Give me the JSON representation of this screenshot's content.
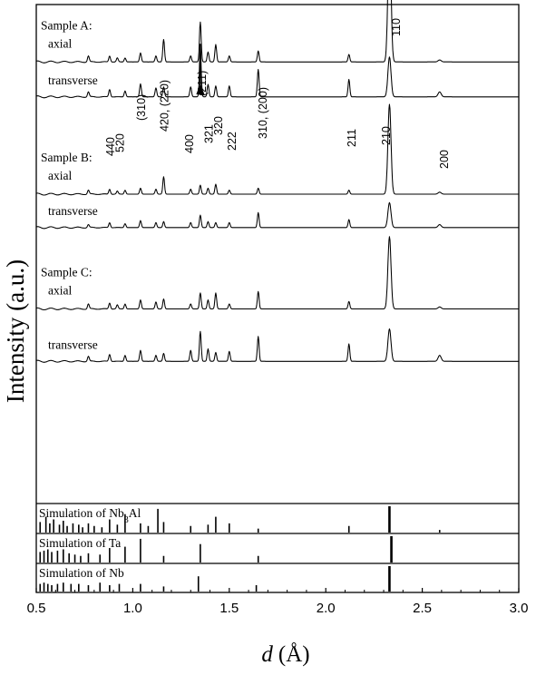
{
  "chart_data": {
    "type": "line",
    "xlabel_var": "d",
    "xlabel_unit": "(Å)",
    "ylabel": "Intensity (a.u.)",
    "xlim": [
      0.5,
      3.0
    ],
    "xticks": [
      "0.5",
      "1.0",
      "1.5",
      "2.0",
      "2.5",
      "3.0"
    ],
    "series": [
      {
        "sample": "Sample A:",
        "name": "axial",
        "baseline": 0.885,
        "peaks": [
          [
            0.77,
            0.012
          ],
          [
            0.88,
            0.012
          ],
          [
            0.92,
            0.008
          ],
          [
            0.96,
            0.008
          ],
          [
            1.04,
            0.018
          ],
          [
            1.12,
            0.012
          ],
          [
            1.16,
            0.045
          ],
          [
            1.3,
            0.012
          ],
          [
            1.35,
            0.08
          ],
          [
            1.39,
            0.02
          ],
          [
            1.43,
            0.035
          ],
          [
            1.5,
            0.012
          ],
          [
            1.65,
            0.022
          ],
          [
            2.12,
            0.015
          ],
          [
            2.33,
            0.26
          ],
          [
            2.59,
            0.004
          ]
        ]
      },
      {
        "name": "transverse",
        "baseline": 0.815,
        "peaks": [
          [
            0.77,
            0.01
          ],
          [
            0.88,
            0.015
          ],
          [
            0.96,
            0.012
          ],
          [
            1.04,
            0.026
          ],
          [
            1.12,
            0.018
          ],
          [
            1.16,
            0.02
          ],
          [
            1.3,
            0.02
          ],
          [
            1.35,
            0.1
          ],
          [
            1.39,
            0.025
          ],
          [
            1.43,
            0.022
          ],
          [
            1.5,
            0.022
          ],
          [
            1.65,
            0.055
          ],
          [
            2.12,
            0.035
          ],
          [
            2.33,
            0.08
          ],
          [
            2.59,
            0.01
          ]
        ]
      },
      {
        "sample": "Sample B:",
        "name": "axial",
        "baseline": 0.62,
        "peaks": [
          [
            0.77,
            0.008
          ],
          [
            0.88,
            0.01
          ],
          [
            0.92,
            0.006
          ],
          [
            0.96,
            0.008
          ],
          [
            1.04,
            0.012
          ],
          [
            1.12,
            0.01
          ],
          [
            1.16,
            0.035
          ],
          [
            1.3,
            0.01
          ],
          [
            1.35,
            0.018
          ],
          [
            1.39,
            0.012
          ],
          [
            1.43,
            0.02
          ],
          [
            1.5,
            0.008
          ],
          [
            1.65,
            0.012
          ],
          [
            2.12,
            0.008
          ],
          [
            2.33,
            0.18
          ],
          [
            2.59,
            0.004
          ]
        ]
      },
      {
        "name": "transverse",
        "baseline": 0.553,
        "peaks": [
          [
            0.77,
            0.006
          ],
          [
            0.88,
            0.01
          ],
          [
            0.96,
            0.008
          ],
          [
            1.04,
            0.014
          ],
          [
            1.12,
            0.01
          ],
          [
            1.16,
            0.012
          ],
          [
            1.3,
            0.01
          ],
          [
            1.35,
            0.025
          ],
          [
            1.39,
            0.012
          ],
          [
            1.43,
            0.01
          ],
          [
            1.5,
            0.01
          ],
          [
            1.65,
            0.03
          ],
          [
            2.12,
            0.016
          ],
          [
            2.33,
            0.05
          ],
          [
            2.59,
            0.006
          ]
        ]
      },
      {
        "sample": "Sample C:",
        "name": "axial",
        "baseline": 0.39,
        "peaks": [
          [
            0.77,
            0.01
          ],
          [
            0.88,
            0.012
          ],
          [
            0.92,
            0.008
          ],
          [
            0.96,
            0.01
          ],
          [
            1.04,
            0.018
          ],
          [
            1.12,
            0.014
          ],
          [
            1.16,
            0.02
          ],
          [
            1.3,
            0.01
          ],
          [
            1.35,
            0.032
          ],
          [
            1.39,
            0.018
          ],
          [
            1.43,
            0.032
          ],
          [
            1.5,
            0.01
          ],
          [
            1.65,
            0.035
          ],
          [
            2.12,
            0.015
          ],
          [
            2.33,
            0.145
          ],
          [
            2.59,
            0.004
          ]
        ]
      },
      {
        "name": "transverse",
        "baseline": 0.285,
        "peaks": [
          [
            0.77,
            0.01
          ],
          [
            0.88,
            0.014
          ],
          [
            0.96,
            0.012
          ],
          [
            1.04,
            0.022
          ],
          [
            1.12,
            0.012
          ],
          [
            1.16,
            0.016
          ],
          [
            1.3,
            0.022
          ],
          [
            1.35,
            0.06
          ],
          [
            1.39,
            0.025
          ],
          [
            1.43,
            0.018
          ],
          [
            1.5,
            0.02
          ],
          [
            1.65,
            0.05
          ],
          [
            2.12,
            0.035
          ],
          [
            2.33,
            0.065
          ],
          [
            2.59,
            0.012
          ]
        ]
      }
    ],
    "peak_labels": [
      {
        "text": "110",
        "d": 2.36
      },
      {
        "text": "(211)",
        "d": 1.355
      },
      {
        "text": "420, (220)",
        "d": 1.16
      },
      {
        "text": "(310)",
        "d": 1.04
      },
      {
        "text": "440",
        "d": 0.88
      },
      {
        "text": "520",
        "d": 0.93
      },
      {
        "text": "400",
        "d": 1.29
      },
      {
        "text": "321",
        "d": 1.39
      },
      {
        "text": "320",
        "d": 1.44
      },
      {
        "text": "222",
        "d": 1.51
      },
      {
        "text": "310, (200)",
        "d": 1.67
      },
      {
        "text": "211",
        "d": 2.13
      },
      {
        "text": "210",
        "d": 2.31
      },
      {
        "text": "200",
        "d": 2.61
      }
    ],
    "simulations": [
      {
        "label": "Simulation of Nb",
        "sub": "3",
        "suffix": "Al",
        "sticks": [
          [
            0.52,
            0.4
          ],
          [
            0.55,
            0.6
          ],
          [
            0.57,
            0.35
          ],
          [
            0.59,
            0.5
          ],
          [
            0.62,
            0.3
          ],
          [
            0.64,
            0.45
          ],
          [
            0.66,
            0.25
          ],
          [
            0.69,
            0.35
          ],
          [
            0.72,
            0.3
          ],
          [
            0.74,
            0.2
          ],
          [
            0.77,
            0.35
          ],
          [
            0.8,
            0.25
          ],
          [
            0.84,
            0.2
          ],
          [
            0.88,
            0.5
          ],
          [
            0.92,
            0.3
          ],
          [
            0.96,
            0.7
          ],
          [
            1.04,
            0.35
          ],
          [
            1.08,
            0.25
          ],
          [
            1.13,
            0.9
          ],
          [
            1.16,
            0.4
          ],
          [
            1.3,
            0.25
          ],
          [
            1.39,
            0.3
          ],
          [
            1.43,
            0.6
          ],
          [
            1.5,
            0.35
          ],
          [
            1.65,
            0.15
          ],
          [
            2.12,
            0.25
          ],
          [
            2.33,
            1.0
          ],
          [
            2.59,
            0.1
          ]
        ]
      },
      {
        "label": "Simulation of Ta",
        "sub": "",
        "suffix": "",
        "sticks": [
          [
            0.52,
            0.4
          ],
          [
            0.54,
            0.45
          ],
          [
            0.56,
            0.5
          ],
          [
            0.58,
            0.4
          ],
          [
            0.61,
            0.45
          ],
          [
            0.64,
            0.5
          ],
          [
            0.67,
            0.35
          ],
          [
            0.7,
            0.3
          ],
          [
            0.73,
            0.25
          ],
          [
            0.77,
            0.35
          ],
          [
            0.83,
            0.3
          ],
          [
            0.88,
            0.55
          ],
          [
            0.96,
            0.6
          ],
          [
            1.04,
            0.9
          ],
          [
            1.16,
            0.25
          ],
          [
            1.35,
            0.7
          ],
          [
            1.65,
            0.25
          ],
          [
            2.34,
            1.0
          ]
        ]
      },
      {
        "label": "Simulation of Nb",
        "sub": "",
        "suffix": "",
        "sticks": [
          [
            0.52,
            0.3
          ],
          [
            0.54,
            0.35
          ],
          [
            0.56,
            0.3
          ],
          [
            0.58,
            0.25
          ],
          [
            0.61,
            0.3
          ],
          [
            0.64,
            0.35
          ],
          [
            0.68,
            0.3
          ],
          [
            0.72,
            0.3
          ],
          [
            0.77,
            0.25
          ],
          [
            0.83,
            0.35
          ],
          [
            0.88,
            0.25
          ],
          [
            0.93,
            0.3
          ],
          [
            1.04,
            0.3
          ],
          [
            1.16,
            0.2
          ],
          [
            1.34,
            0.6
          ],
          [
            1.64,
            0.25
          ],
          [
            2.33,
            1.0
          ]
        ]
      }
    ]
  }
}
